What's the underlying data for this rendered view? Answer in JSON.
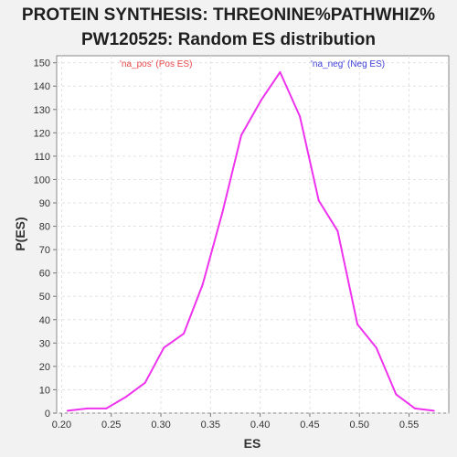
{
  "chart_data": {
    "type": "line",
    "title_line1": "PROTEIN SYNTHESIS: THREONINE%PATHWHIZ%",
    "title_line2": "PW120525: Random ES distribution",
    "xlabel": "ES",
    "ylabel": "P(ES)",
    "xlim": [
      0.195,
      0.59
    ],
    "ylim": [
      0,
      153
    ],
    "x_ticks": [
      "0.20",
      "0.25",
      "0.30",
      "0.35",
      "0.40",
      "0.45",
      "0.50",
      "0.55"
    ],
    "y_ticks": [
      "0",
      "10",
      "20",
      "30",
      "40",
      "50",
      "60",
      "70",
      "80",
      "90",
      "100",
      "110",
      "120",
      "130",
      "140",
      "150"
    ],
    "grid": true,
    "legend": {
      "pos_label": "'na_pos' (Pos ES)",
      "neg_label": "'na_neg' (Neg ES)",
      "pos_color": "#e8474a",
      "neg_color": "#3f3fd8"
    },
    "series": [
      {
        "color": "#ee33ee",
        "x": [
          0.206,
          0.226,
          0.245,
          0.265,
          0.284,
          0.303,
          0.323,
          0.342,
          0.362,
          0.381,
          0.401,
          0.42,
          0.44,
          0.459,
          0.478,
          0.498,
          0.517,
          0.537,
          0.556,
          0.575
        ],
        "y": [
          1,
          2,
          2,
          7,
          13,
          28,
          34,
          55,
          86,
          119,
          134,
          146,
          127,
          91,
          78,
          38,
          28,
          8,
          2,
          1
        ]
      }
    ]
  }
}
